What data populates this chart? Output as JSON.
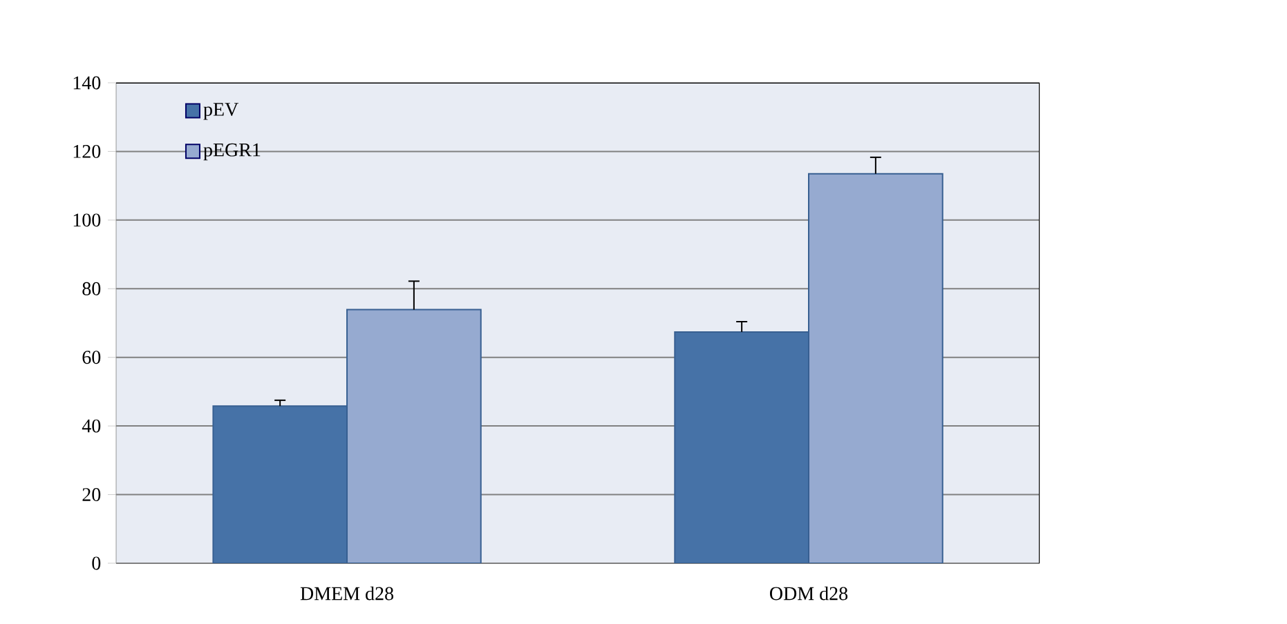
{
  "chart_data": {
    "type": "bar",
    "categories": [
      "DMEM d28",
      "ODM d28"
    ],
    "series": [
      {
        "name": "pEV",
        "color": "#4672a7",
        "values": [
          45.8,
          67.4
        ],
        "errors": [
          1.7,
          3
        ]
      },
      {
        "name": "pEGR1",
        "color": "#96aad0",
        "values": [
          73.9,
          113.5
        ],
        "errors": [
          8.3,
          4.8
        ]
      }
    ],
    "ylim": [
      0,
      140
    ],
    "yticks": [
      0,
      20,
      40,
      60,
      80,
      100,
      120,
      140
    ],
    "grid": "y",
    "legend": "top left"
  }
}
